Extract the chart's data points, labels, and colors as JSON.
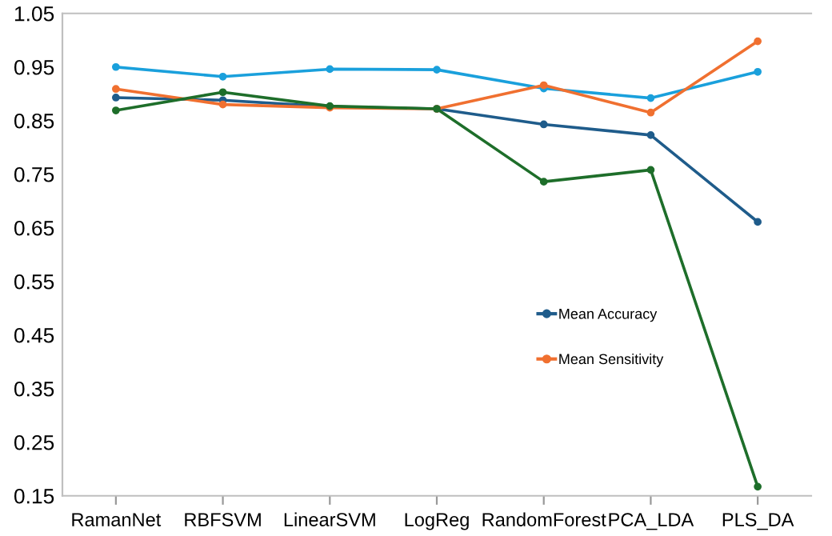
{
  "chart_data": {
    "type": "line",
    "categories": [
      "RamanNet",
      "RBFSVM",
      "LinearSVM",
      "LogReg",
      "RandomForest",
      "PCA_LDA",
      "PLS_DA"
    ],
    "series": [
      {
        "color": "#1aa0dc",
        "values": [
          0.95,
          0.932,
          0.946,
          0.945,
          0.91,
          0.892,
          0.941
        ]
      },
      {
        "name": "Mean Accuracy",
        "color": "#1f5c8b",
        "values": [
          0.893,
          0.888,
          0.876,
          0.872,
          0.843,
          0.823,
          0.661
        ]
      },
      {
        "name": "Mean Sensitivity",
        "color": "#f07030",
        "values": [
          0.909,
          0.88,
          0.874,
          0.872,
          0.916,
          0.865,
          0.998
        ]
      },
      {
        "color": "#1e6e2a",
        "values": [
          0.869,
          0.903,
          0.877,
          0.872,
          0.736,
          0.758,
          0.167
        ]
      }
    ],
    "ylim": [
      0.15,
      1.05
    ],
    "yticks": [
      {
        "value": 0.15,
        "label": "0.15"
      },
      {
        "value": 0.25,
        "label": "0.25"
      },
      {
        "value": 0.35,
        "label": "0.35"
      },
      {
        "value": 0.45,
        "label": "0.45"
      },
      {
        "value": 0.55,
        "label": "0.55"
      },
      {
        "value": 0.65,
        "label": "0.65"
      },
      {
        "value": 0.75,
        "label": "0.75"
      },
      {
        "value": 0.85,
        "label": "0.85"
      },
      {
        "value": 0.95,
        "label": "0.95"
      },
      {
        "value": 1.05,
        "label": "1.05"
      }
    ],
    "marker": "circle",
    "line_style": "solid",
    "legend": "lower right",
    "grid": false
  }
}
